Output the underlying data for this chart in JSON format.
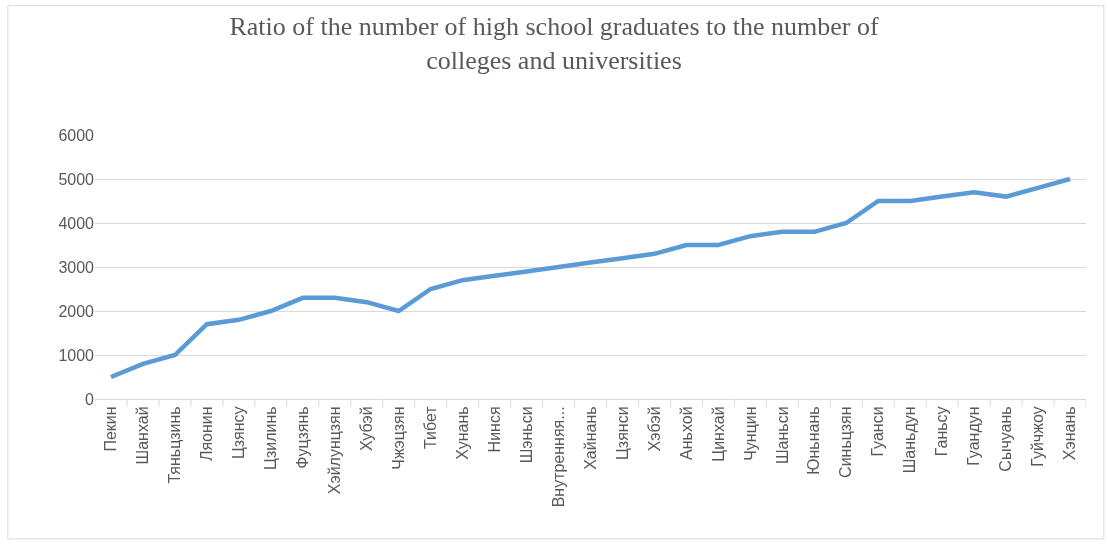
{
  "chart_data": {
    "type": "line",
    "title": "Ratio of the number of high school graduates to the number of colleges and universities",
    "categories": [
      "Пекин",
      "Шанхай",
      "Тяньцзинь",
      "Ляонин",
      "Цзянсу",
      "Цзилинь",
      "Фуцзянь",
      "Хэйлунцзян",
      "Хубэй",
      "Чжэцзян",
      "Тибет",
      "Хунань",
      "Нинся",
      "Шэньси",
      "Внутренняя...",
      "Хайнань",
      "Цзянси",
      "Хэбэй",
      "Аньхой",
      "Цинхай",
      "Чунцин",
      "Шаньси",
      "Юньнань",
      "Синьцзян",
      "Гуанси",
      "Шаньдун",
      "Ганьсу",
      "Гуандун",
      "Сычуань",
      "Гуйчжоу",
      "Хэнань"
    ],
    "series": [
      {
        "color": "#5b9bd5",
        "values": [
          500,
          800,
          1000,
          1700,
          1800,
          2000,
          2300,
          2300,
          2200,
          2000,
          2500,
          2700,
          2800,
          2900,
          3000,
          3100,
          3200,
          3300,
          3500,
          3500,
          3700,
          3800,
          3800,
          4000,
          4500,
          4500,
          4600,
          4700,
          4600,
          4800,
          5000
        ]
      }
    ],
    "ylim": [
      0,
      6000
    ],
    "yticks": [
      0,
      1000,
      2000,
      3000,
      4000,
      5000,
      6000
    ],
    "grid": "y",
    "marker": "none",
    "line_style": "solid"
  }
}
